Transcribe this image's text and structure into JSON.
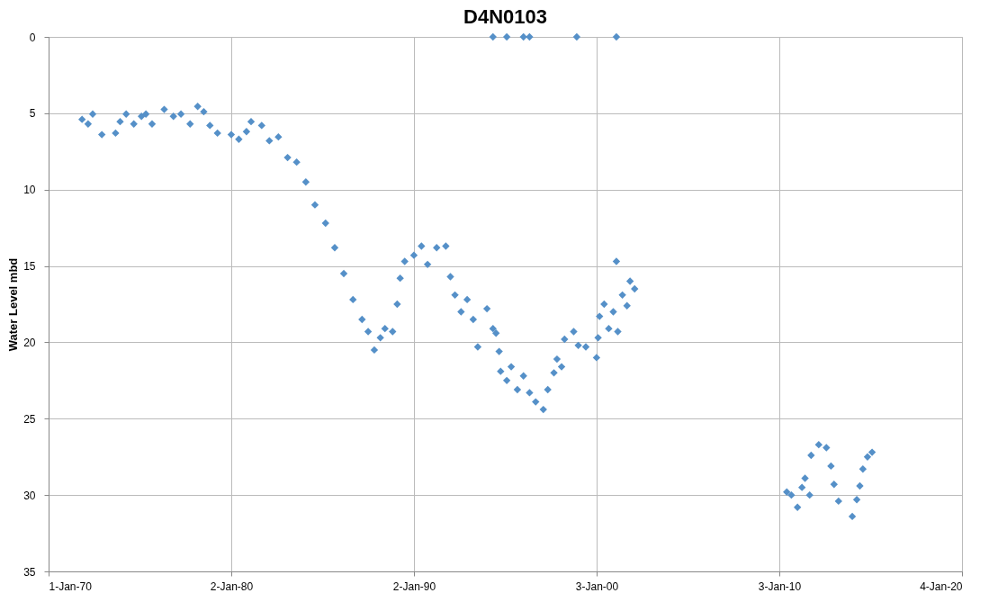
{
  "chart_data": {
    "type": "scatter",
    "title": "D4N0103",
    "ylabel": "Water Level mbd",
    "x": [
      "1971-11",
      "1972-03",
      "1972-06",
      "1972-12",
      "1973-09",
      "1973-12",
      "1974-04",
      "1974-09",
      "1975-02",
      "1975-05",
      "1975-09",
      "1976-05",
      "1976-11",
      "1977-04",
      "1977-10",
      "1978-03",
      "1978-07",
      "1978-11",
      "1979-04",
      "1980-01",
      "1980-06",
      "1980-11",
      "1981-02",
      "1981-09",
      "1982-02",
      "1982-08",
      "1983-02",
      "1983-08",
      "1984-02",
      "1984-08",
      "1985-03",
      "1985-09",
      "1986-03",
      "1986-09",
      "1987-03",
      "1987-07",
      "1987-11",
      "1988-03",
      "1988-06",
      "1988-11",
      "1989-02",
      "1989-04",
      "1989-07",
      "1990-01",
      "1990-06",
      "1990-10",
      "1991-04",
      "1991-10",
      "1992-01",
      "1992-04",
      "1992-08",
      "1992-12",
      "1993-04",
      "1993-07",
      "1994-01",
      "1994-05",
      "1994-07",
      "1994-09",
      "1994-10",
      "1995-02",
      "1995-05",
      "1995-09",
      "1996-01",
      "1996-05",
      "1996-09",
      "1997-02",
      "1997-05",
      "1997-09",
      "1997-11",
      "1998-02",
      "1998-04",
      "1998-10",
      "1999-01",
      "1999-06",
      "2000-01",
      "2000-02",
      "2000-03",
      "2000-06",
      "2000-09",
      "2000-12",
      "2001-02",
      "2001-03",
      "2001-06",
      "2001-09",
      "2001-11",
      "2002-02",
      "1994-05",
      "1995-02",
      "1996-01",
      "1996-05",
      "1998-12",
      "2001-02",
      "2010-06",
      "2010-09",
      "2011-01",
      "2011-04",
      "2011-06",
      "2011-09",
      "2011-10",
      "2012-03",
      "2012-08",
      "2012-11",
      "2013-01",
      "2013-04",
      "2014-01",
      "2014-04",
      "2014-06",
      "2014-08",
      "2014-11",
      "2015-02"
    ],
    "values": [
      5.4,
      5.7,
      5.05,
      6.4,
      6.3,
      5.55,
      5.05,
      5.7,
      5.2,
      5.05,
      5.7,
      4.75,
      5.2,
      5.05,
      5.7,
      4.55,
      4.9,
      5.8,
      6.3,
      6.4,
      6.7,
      6.2,
      5.55,
      5.8,
      6.8,
      6.55,
      7.9,
      8.2,
      9.5,
      11,
      12.2,
      13.8,
      15.5,
      17.2,
      18.5,
      19.3,
      20.5,
      19.7,
      19.1,
      19.3,
      17.5,
      15.8,
      14.7,
      14.3,
      13.7,
      14.9,
      13.8,
      13.7,
      15.7,
      16.9,
      18,
      17.2,
      18.5,
      20.3,
      17.8,
      19.1,
      19.4,
      20.6,
      21.9,
      22.5,
      21.6,
      23.1,
      22.2,
      23.3,
      23.9,
      24.4,
      23.1,
      22,
      21.1,
      21.6,
      19.8,
      19.3,
      20.2,
      20.3,
      21,
      19.7,
      18.3,
      17.5,
      19.1,
      18,
      14.7,
      19.3,
      16.9,
      17.6,
      16,
      16.5,
      0,
      0,
      0,
      0,
      0,
      0,
      29.8,
      30,
      30.8,
      29.5,
      28.9,
      30,
      27.4,
      26.7,
      26.9,
      28.1,
      29.3,
      30.4,
      31.4,
      30.3,
      29.4,
      28.3,
      27.5,
      27.2
    ],
    "color": "#5590c8",
    "marker": "diamond",
    "xlim": [
      "1970-01-01",
      "2020-01-04"
    ],
    "xticks": [
      {
        "value": "1970-01-01",
        "label": "1-Jan-70"
      },
      {
        "value": "1980-01-02",
        "label": "2-Jan-80"
      },
      {
        "value": "1990-01-02",
        "label": "2-Jan-90"
      },
      {
        "value": "2000-01-03",
        "label": "3-Jan-00"
      },
      {
        "value": "2010-01-03",
        "label": "3-Jan-10"
      },
      {
        "value": "2020-01-04",
        "label": "4-Jan-20"
      }
    ],
    "ylim": [
      35,
      0
    ],
    "yticks": [
      0,
      5,
      10,
      15,
      20,
      25,
      30,
      35
    ],
    "grid": true
  }
}
